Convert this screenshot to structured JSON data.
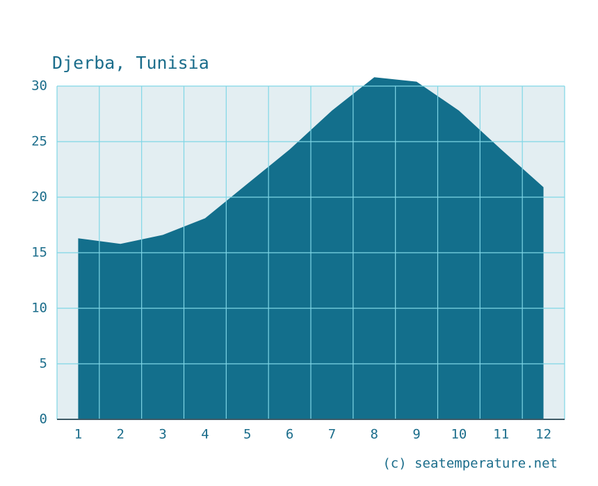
{
  "chart_data": {
    "type": "area",
    "title": "Djerba, Tunisia",
    "credit": "(c) seatemperature.net",
    "categories": [
      "1",
      "2",
      "3",
      "4",
      "5",
      "6",
      "7",
      "8",
      "9",
      "10",
      "11",
      "12"
    ],
    "values": [
      16.3,
      15.8,
      16.6,
      18.1,
      21.2,
      24.3,
      27.8,
      30.8,
      30.4,
      27.8,
      24.3,
      20.9
    ],
    "color": "#136f8c",
    "background": "#e3eef2",
    "grid_color": "#7fd6e6",
    "ylim": [
      0,
      30
    ],
    "yticks": [
      0,
      5,
      10,
      15,
      20,
      25,
      30
    ],
    "grid": true
  }
}
